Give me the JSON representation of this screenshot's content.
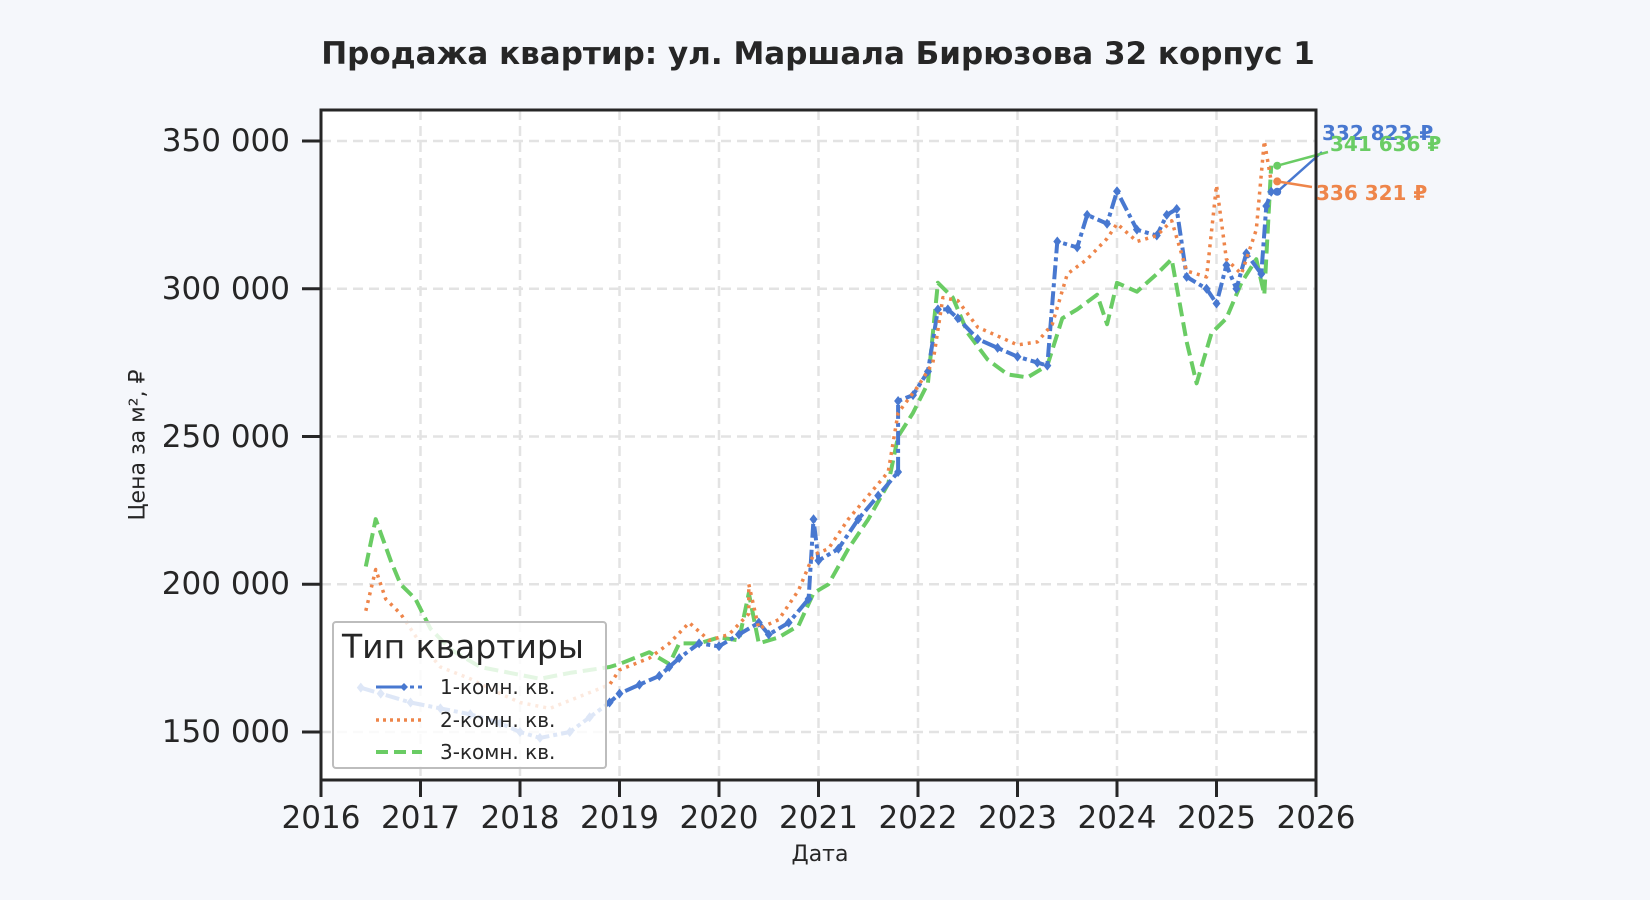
{
  "chart_data": {
    "type": "line",
    "title": "Продажа квартир: ул. Маршала Бирюзова 32 корпус 1",
    "xlabel": "Дата",
    "ylabel": "Цена за м², ₽",
    "xlim": [
      2016,
      2026
    ],
    "ylim": [
      134000,
      361000
    ],
    "x_ticks": [
      "2016",
      "2017",
      "2018",
      "2019",
      "2020",
      "2021",
      "2022",
      "2023",
      "2024",
      "2025",
      "2026"
    ],
    "y_ticks": [
      "350 000",
      "300 000",
      "250 000",
      "200 000",
      "150 000"
    ],
    "grid": true,
    "legend": {
      "title": "Тип квартиры",
      "position": "lower left"
    },
    "series": [
      {
        "name": "1-комн. кв.",
        "color": "#4878d0",
        "style": "dash-dot with diamond markers",
        "points": [
          [
            2016.4,
            165000
          ],
          [
            2016.6,
            163000
          ],
          [
            2016.9,
            160000
          ],
          [
            2017.2,
            158000
          ],
          [
            2017.5,
            156000
          ],
          [
            2017.8,
            153000
          ],
          [
            2018.0,
            150000
          ],
          [
            2018.2,
            148000
          ],
          [
            2018.5,
            150000
          ],
          [
            2018.7,
            155000
          ],
          [
            2018.9,
            160000
          ],
          [
            2019.0,
            163000
          ],
          [
            2019.2,
            166000
          ],
          [
            2019.4,
            169000
          ],
          [
            2019.5,
            172000
          ],
          [
            2019.6,
            175000
          ],
          [
            2019.8,
            180000
          ],
          [
            2020.0,
            179000
          ],
          [
            2020.2,
            183000
          ],
          [
            2020.4,
            187000
          ],
          [
            2020.5,
            183000
          ],
          [
            2020.7,
            187000
          ],
          [
            2020.9,
            195000
          ],
          [
            2020.95,
            222000
          ],
          [
            2021.0,
            208000
          ],
          [
            2021.2,
            212000
          ],
          [
            2021.4,
            222000
          ],
          [
            2021.6,
            230000
          ],
          [
            2021.8,
            238000
          ],
          [
            2021.8,
            262000
          ],
          [
            2021.95,
            264000
          ],
          [
            2022.1,
            272000
          ],
          [
            2022.2,
            293000
          ],
          [
            2022.3,
            293000
          ],
          [
            2022.4,
            290000
          ],
          [
            2022.6,
            283000
          ],
          [
            2022.8,
            280000
          ],
          [
            2023.0,
            277000
          ],
          [
            2023.2,
            275000
          ],
          [
            2023.3,
            274000
          ],
          [
            2023.4,
            316000
          ],
          [
            2023.6,
            314000
          ],
          [
            2023.7,
            325000
          ],
          [
            2023.9,
            322000
          ],
          [
            2024.0,
            333000
          ],
          [
            2024.2,
            320000
          ],
          [
            2024.4,
            318000
          ],
          [
            2024.5,
            325000
          ],
          [
            2024.6,
            327000
          ],
          [
            2024.7,
            304000
          ],
          [
            2024.9,
            300000
          ],
          [
            2025.0,
            295000
          ],
          [
            2025.1,
            308000
          ],
          [
            2025.2,
            300000
          ],
          [
            2025.3,
            312000
          ],
          [
            2025.45,
            305000
          ],
          [
            2025.5,
            328000
          ],
          [
            2025.55,
            332823
          ]
        ]
      },
      {
        "name": "2-комн. кв.",
        "color": "#ee854a",
        "style": "dotted",
        "points": [
          [
            2016.45,
            191000
          ],
          [
            2016.55,
            205000
          ],
          [
            2016.65,
            195000
          ],
          [
            2016.8,
            190000
          ],
          [
            2017.0,
            180000
          ],
          [
            2017.2,
            172000
          ],
          [
            2017.5,
            168000
          ],
          [
            2017.8,
            163000
          ],
          [
            2018.0,
            160000
          ],
          [
            2018.3,
            158000
          ],
          [
            2018.6,
            162000
          ],
          [
            2018.9,
            166000
          ],
          [
            2019.0,
            171000
          ],
          [
            2019.3,
            175000
          ],
          [
            2019.5,
            180000
          ],
          [
            2019.7,
            187000
          ],
          [
            2019.9,
            181000
          ],
          [
            2020.1,
            183000
          ],
          [
            2020.3,
            190000
          ],
          [
            2020.3,
            200000
          ],
          [
            2020.4,
            185000
          ],
          [
            2020.6,
            188000
          ],
          [
            2020.8,
            198000
          ],
          [
            2020.95,
            210000
          ],
          [
            2021.1,
            212000
          ],
          [
            2021.3,
            222000
          ],
          [
            2021.5,
            230000
          ],
          [
            2021.7,
            238000
          ],
          [
            2021.8,
            258000
          ],
          [
            2022.0,
            267000
          ],
          [
            2022.15,
            275000
          ],
          [
            2022.25,
            297000
          ],
          [
            2022.4,
            296000
          ],
          [
            2022.6,
            287000
          ],
          [
            2022.8,
            284000
          ],
          [
            2023.0,
            281000
          ],
          [
            2023.2,
            282000
          ],
          [
            2023.35,
            288000
          ],
          [
            2023.5,
            305000
          ],
          [
            2023.7,
            310000
          ],
          [
            2023.9,
            317000
          ],
          [
            2024.0,
            322000
          ],
          [
            2024.2,
            316000
          ],
          [
            2024.4,
            318000
          ],
          [
            2024.55,
            323000
          ],
          [
            2024.7,
            306000
          ],
          [
            2024.9,
            304000
          ],
          [
            2025.0,
            335000
          ],
          [
            2025.1,
            310000
          ],
          [
            2025.25,
            305000
          ],
          [
            2025.4,
            320000
          ],
          [
            2025.48,
            350000
          ],
          [
            2025.55,
            336321
          ]
        ]
      },
      {
        "name": "3-комн. кв.",
        "color": "#6acc64",
        "style": "dashed",
        "points": [
          [
            2016.45,
            206000
          ],
          [
            2016.55,
            222000
          ],
          [
            2016.7,
            208000
          ],
          [
            2016.8,
            200000
          ],
          [
            2016.95,
            195000
          ],
          [
            2017.1,
            185000
          ],
          [
            2017.3,
            178000
          ],
          [
            2017.6,
            172000
          ],
          [
            2017.9,
            170000
          ],
          [
            2018.2,
            168000
          ],
          [
            2018.5,
            170000
          ],
          [
            2018.9,
            172000
          ],
          [
            2019.0,
            173000
          ],
          [
            2019.3,
            177000
          ],
          [
            2019.5,
            173000
          ],
          [
            2019.6,
            180000
          ],
          [
            2019.8,
            180000
          ],
          [
            2020.0,
            182000
          ],
          [
            2020.2,
            181000
          ],
          [
            2020.3,
            197000
          ],
          [
            2020.4,
            180000
          ],
          [
            2020.6,
            182000
          ],
          [
            2020.8,
            186000
          ],
          [
            2020.95,
            197000
          ],
          [
            2021.1,
            200000
          ],
          [
            2021.3,
            212000
          ],
          [
            2021.5,
            222000
          ],
          [
            2021.7,
            234000
          ],
          [
            2021.8,
            250000
          ],
          [
            2021.95,
            258000
          ],
          [
            2022.1,
            268000
          ],
          [
            2022.2,
            302000
          ],
          [
            2022.35,
            297000
          ],
          [
            2022.5,
            285000
          ],
          [
            2022.7,
            276000
          ],
          [
            2022.9,
            271000
          ],
          [
            2023.1,
            270000
          ],
          [
            2023.3,
            274000
          ],
          [
            2023.45,
            290000
          ],
          [
            2023.6,
            293000
          ],
          [
            2023.8,
            298000
          ],
          [
            2023.9,
            288000
          ],
          [
            2024.0,
            302000
          ],
          [
            2024.2,
            299000
          ],
          [
            2024.4,
            305000
          ],
          [
            2024.55,
            310000
          ],
          [
            2024.7,
            282000
          ],
          [
            2024.8,
            268000
          ],
          [
            2024.95,
            285000
          ],
          [
            2025.1,
            290000
          ],
          [
            2025.25,
            302000
          ],
          [
            2025.4,
            310000
          ],
          [
            2025.48,
            298000
          ],
          [
            2025.55,
            341636
          ]
        ]
      }
    ],
    "annotations": [
      {
        "text": "332 823 ₽",
        "series": "1-комн. кв.",
        "x": 2025.55,
        "y": 332823,
        "color": "#4878d0"
      },
      {
        "text": "341 636 ₽",
        "series": "3-комн. кв.",
        "x": 2025.55,
        "y": 341636,
        "color": "#6acc64"
      },
      {
        "text": "336 321 ₽",
        "series": "2-комн. кв.",
        "x": 2025.55,
        "y": 336321,
        "color": "#ee854a"
      }
    ]
  }
}
